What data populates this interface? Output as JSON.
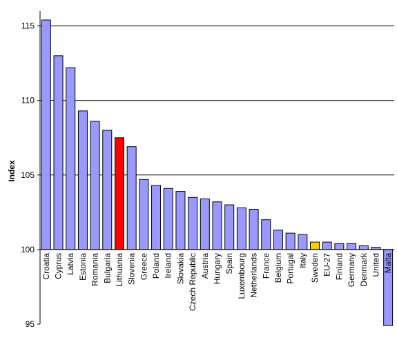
{
  "chart_data": {
    "type": "bar",
    "title": "",
    "xlabel": "",
    "ylabel": "Index",
    "ylim": [
      95,
      116
    ],
    "yticks": [
      95,
      100,
      105,
      110,
      115
    ],
    "baseline": 100,
    "grid": "horizontal major gridlines",
    "legend": "none",
    "categories": [
      "Croatia",
      "Cyprus",
      "Latvia",
      "Estonia",
      "Romania",
      "Bulgaria",
      "Lithuania",
      "Slovenia",
      "Greece",
      "Poland",
      "Ireland",
      "Slovakia",
      "Czech Republic",
      "Austria",
      "Hungary",
      "Spain",
      "Luxembourg",
      "Netherlands",
      "France",
      "Belgium",
      "Portugal",
      "Italy",
      "Sweden",
      "EU-27",
      "Finland",
      "Germany",
      "Denmark",
      "United",
      "Malta"
    ],
    "values": [
      115.4,
      113.0,
      112.2,
      109.3,
      108.6,
      108.0,
      107.5,
      106.9,
      104.7,
      104.3,
      104.1,
      103.9,
      103.5,
      103.4,
      103.2,
      103.0,
      102.8,
      102.7,
      102.0,
      101.3,
      101.1,
      101.0,
      100.5,
      100.5,
      100.4,
      100.4,
      100.25,
      100.15,
      94.9
    ],
    "colors": {
      "default": "#9999ff",
      "highlight_red": "#ff0000",
      "highlight_orange": "#ffcc00",
      "outline": "#000000",
      "grid": "#000000"
    },
    "highlights": {
      "Lithuania": "#ff0000",
      "Sweden": "#ffcc00"
    }
  }
}
